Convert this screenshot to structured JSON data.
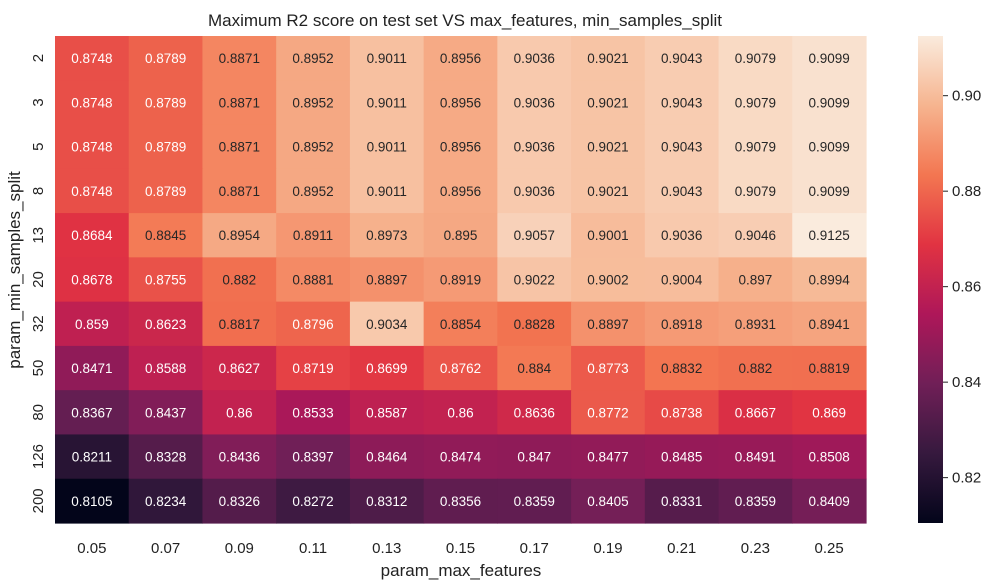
{
  "chart_data": {
    "type": "heatmap",
    "title": "Maximum R2 score on test set VS max_features, min_samples_split",
    "xlabel": "param_max_features",
    "ylabel": "param_min_samples_split",
    "x_categories": [
      "0.05",
      "0.07",
      "0.09",
      "0.11",
      "0.13",
      "0.15",
      "0.17",
      "0.19",
      "0.21",
      "0.23",
      "0.25"
    ],
    "y_categories": [
      "2",
      "3",
      "5",
      "8",
      "13",
      "20",
      "32",
      "50",
      "80",
      "126",
      "200"
    ],
    "values": [
      [
        0.8748,
        0.8789,
        0.8871,
        0.8952,
        0.9011,
        0.8956,
        0.9036,
        0.9021,
        0.9043,
        0.9079,
        0.9099
      ],
      [
        0.8748,
        0.8789,
        0.8871,
        0.8952,
        0.9011,
        0.8956,
        0.9036,
        0.9021,
        0.9043,
        0.9079,
        0.9099
      ],
      [
        0.8748,
        0.8789,
        0.8871,
        0.8952,
        0.9011,
        0.8956,
        0.9036,
        0.9021,
        0.9043,
        0.9079,
        0.9099
      ],
      [
        0.8748,
        0.8789,
        0.8871,
        0.8952,
        0.9011,
        0.8956,
        0.9036,
        0.9021,
        0.9043,
        0.9079,
        0.9099
      ],
      [
        0.8684,
        0.8845,
        0.8954,
        0.8911,
        0.8973,
        0.895,
        0.9057,
        0.9001,
        0.9036,
        0.9046,
        0.9125
      ],
      [
        0.8678,
        0.8755,
        0.882,
        0.8881,
        0.8897,
        0.8919,
        0.9022,
        0.9002,
        0.9004,
        0.897,
        0.8994
      ],
      [
        0.859,
        0.8623,
        0.8817,
        0.8796,
        0.9034,
        0.8854,
        0.8828,
        0.8897,
        0.8918,
        0.8931,
        0.8941
      ],
      [
        0.8471,
        0.8588,
        0.8627,
        0.8719,
        0.8699,
        0.8762,
        0.884,
        0.8773,
        0.8832,
        0.882,
        0.8819
      ],
      [
        0.8367,
        0.8437,
        0.86,
        0.8533,
        0.8587,
        0.86,
        0.8636,
        0.8772,
        0.8738,
        0.8667,
        0.869
      ],
      [
        0.8211,
        0.8328,
        0.8436,
        0.8397,
        0.8464,
        0.8474,
        0.847,
        0.8477,
        0.8485,
        0.8491,
        0.8508
      ],
      [
        0.8105,
        0.8234,
        0.8326,
        0.8272,
        0.8312,
        0.8356,
        0.8359,
        0.8405,
        0.8331,
        0.8359,
        0.8409
      ]
    ],
    "value_labels": [
      [
        "0.8748",
        "0.8789",
        "0.8871",
        "0.8952",
        "0.9011",
        "0.8956",
        "0.9036",
        "0.9021",
        "0.9043",
        "0.9079",
        "0.9099"
      ],
      [
        "0.8748",
        "0.8789",
        "0.8871",
        "0.8952",
        "0.9011",
        "0.8956",
        "0.9036",
        "0.9021",
        "0.9043",
        "0.9079",
        "0.9099"
      ],
      [
        "0.8748",
        "0.8789",
        "0.8871",
        "0.8952",
        "0.9011",
        "0.8956",
        "0.9036",
        "0.9021",
        "0.9043",
        "0.9079",
        "0.9099"
      ],
      [
        "0.8748",
        "0.8789",
        "0.8871",
        "0.8952",
        "0.9011",
        "0.8956",
        "0.9036",
        "0.9021",
        "0.9043",
        "0.9079",
        "0.9099"
      ],
      [
        "0.8684",
        "0.8845",
        "0.8954",
        "0.8911",
        "0.8973",
        "0.895",
        "0.9057",
        "0.9001",
        "0.9036",
        "0.9046",
        "0.9125"
      ],
      [
        "0.8678",
        "0.8755",
        "0.882",
        "0.8881",
        "0.8897",
        "0.8919",
        "0.9022",
        "0.9002",
        "0.9004",
        "0.897",
        "0.8994"
      ],
      [
        "0.859",
        "0.8623",
        "0.8817",
        "0.8796",
        "0.9034",
        "0.8854",
        "0.8828",
        "0.8897",
        "0.8918",
        "0.8931",
        "0.8941"
      ],
      [
        "0.8471",
        "0.8588",
        "0.8627",
        "0.8719",
        "0.8699",
        "0.8762",
        "0.884",
        "0.8773",
        "0.8832",
        "0.882",
        "0.8819"
      ],
      [
        "0.8367",
        "0.8437",
        "0.86",
        "0.8533",
        "0.8587",
        "0.86",
        "0.8636",
        "0.8772",
        "0.8738",
        "0.8667",
        "0.869"
      ],
      [
        "0.8211",
        "0.8328",
        "0.8436",
        "0.8397",
        "0.8464",
        "0.8474",
        "0.847",
        "0.8477",
        "0.8485",
        "0.8491",
        "0.8508"
      ],
      [
        "0.8105",
        "0.8234",
        "0.8326",
        "0.8272",
        "0.8312",
        "0.8356",
        "0.8359",
        "0.8405",
        "0.8331",
        "0.8359",
        "0.8409"
      ]
    ],
    "colorbar": {
      "vmin": 0.8105,
      "vmax": 0.9125,
      "ticks": [
        0.82,
        0.84,
        0.86,
        0.88,
        0.9
      ],
      "tick_labels": [
        "0.82",
        "0.84",
        "0.86",
        "0.88",
        "0.90"
      ],
      "colormap": "rocket",
      "color_stops": [
        "#03051a",
        "#36193e",
        "#701f57",
        "#ae1759",
        "#e13342",
        "#f37651",
        "#f6b48f",
        "#faebdd"
      ]
    },
    "annotation_colors": {
      "on_dark": "#ffffff",
      "on_light": "#262626"
    }
  }
}
